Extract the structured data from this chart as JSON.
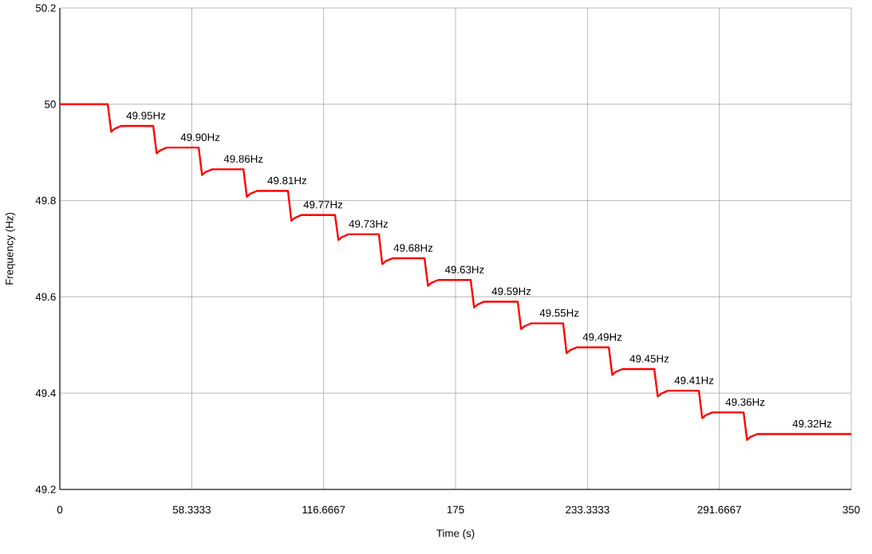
{
  "chart_data": {
    "type": "line",
    "xlabel": "Time (s)",
    "ylabel": "Frequency (Hz)",
    "xlim": [
      0,
      350
    ],
    "ylim": [
      49.2,
      50.2
    ],
    "xticks": [
      0,
      58.3333,
      116.6667,
      175,
      233.3333,
      291.6667,
      350
    ],
    "yticks": [
      49.2,
      49.4,
      49.6,
      49.8,
      50,
      50.2
    ],
    "grid": true,
    "series": [
      {
        "color": "#ff0000",
        "x": [
          0,
          21.2,
          22.7,
          24.2,
          27.2,
          41.3,
          42.8,
          44.3,
          47.3,
          61.4,
          62.9,
          64.4,
          67.4,
          81.2,
          82.7,
          84.2,
          87.2,
          100.9,
          102.4,
          103.9,
          106.9,
          121.7,
          123.2,
          124.7,
          127.7,
          141.1,
          142.6,
          144.1,
          147.1,
          161.3,
          162.8,
          164.3,
          167.3,
          181.7,
          183.2,
          184.7,
          187.7,
          202.5,
          204,
          205.5,
          208.5,
          222.6,
          224.1,
          225.6,
          228.6,
          242.8,
          244.3,
          245.8,
          248.8,
          262.9,
          264.4,
          265.9,
          268.9,
          282.6,
          284.1,
          285.6,
          288.6,
          302.4,
          303.9,
          305.4,
          308.4,
          350
        ],
        "values": [
          50.0,
          50.0,
          49.943,
          49.949,
          49.955,
          49.955,
          49.898,
          49.904,
          49.91,
          49.91,
          49.853,
          49.859,
          49.865,
          49.865,
          49.808,
          49.814,
          49.82,
          49.82,
          49.758,
          49.764,
          49.77,
          49.77,
          49.718,
          49.724,
          49.73,
          49.73,
          49.668,
          49.674,
          49.68,
          49.68,
          49.623,
          49.629,
          49.635,
          49.635,
          49.578,
          49.584,
          49.59,
          49.59,
          49.533,
          49.539,
          49.545,
          49.545,
          49.483,
          49.489,
          49.495,
          49.495,
          49.438,
          49.444,
          49.45,
          49.45,
          49.393,
          49.399,
          49.405,
          49.405,
          49.348,
          49.354,
          49.36,
          49.36,
          49.303,
          49.309,
          49.315,
          49.315
        ]
      }
    ],
    "annotations": [
      {
        "text": "49.95Hz",
        "x": 38.1,
        "y": 49.955
      },
      {
        "text": "49.90Hz",
        "x": 62.1,
        "y": 49.91
      },
      {
        "text": "49.86Hz",
        "x": 81.2,
        "y": 49.865
      },
      {
        "text": "49.81Hz",
        "x": 100.5,
        "y": 49.82
      },
      {
        "text": "49.77Hz",
        "x": 116.4,
        "y": 49.77
      },
      {
        "text": "49.73Hz",
        "x": 136.5,
        "y": 49.73
      },
      {
        "text": "49.68Hz",
        "x": 156.3,
        "y": 49.68
      },
      {
        "text": "49.63Hz",
        "x": 179.0,
        "y": 49.635
      },
      {
        "text": "49.59Hz",
        "x": 199.7,
        "y": 49.59
      },
      {
        "text": "49.55Hz",
        "x": 220.9,
        "y": 49.545
      },
      {
        "text": "49.49Hz",
        "x": 239.9,
        "y": 49.495
      },
      {
        "text": "49.45Hz",
        "x": 260.7,
        "y": 49.45
      },
      {
        "text": "49.41Hz",
        "x": 280.5,
        "y": 49.405
      },
      {
        "text": "49.36Hz",
        "x": 303.1,
        "y": 49.36
      },
      {
        "text": "49.32Hz",
        "x": 332.7,
        "y": 49.315
      }
    ]
  }
}
